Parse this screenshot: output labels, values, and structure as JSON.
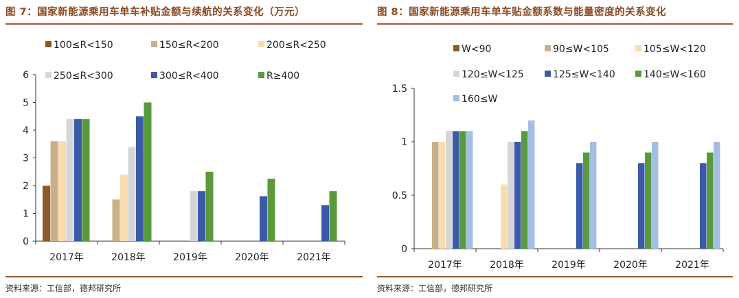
{
  "chart_data": [
    {
      "type": "bar",
      "title": "图 7：国家新能源乘用车单车补贴金额与续航的关系变化（万元）",
      "categories": [
        "2017年",
        "2018年",
        "2019年",
        "2020年",
        "2021年"
      ],
      "ylim": [
        0,
        6
      ],
      "yticks": [
        0,
        1,
        2,
        3,
        4,
        5,
        6
      ],
      "series": [
        {
          "name": "100≤R<150",
          "color": "#8b5a2b",
          "values": [
            2,
            null,
            null,
            null,
            null
          ]
        },
        {
          "name": "150≤R<200",
          "color": "#c8b08a",
          "values": [
            3.6,
            1.5,
            null,
            null,
            null
          ]
        },
        {
          "name": "200≤R<250",
          "color": "#fbdcae",
          "values": [
            3.6,
            2.4,
            null,
            null,
            null
          ]
        },
        {
          "name": "250≤R<300",
          "color": "#d6d6d6",
          "values": [
            4.4,
            3.4,
            1.8,
            null,
            null
          ]
        },
        {
          "name": "300≤R<400",
          "color": "#3b5ba9",
          "values": [
            4.4,
            4.5,
            1.8,
            1.62,
            1.3
          ]
        },
        {
          "name": "R≥400",
          "color": "#5a9a3e",
          "values": [
            4.4,
            5,
            2.5,
            2.25,
            1.8
          ]
        }
      ],
      "source": "资料来源：工信部，德邦研究所"
    },
    {
      "type": "bar",
      "title": "图 8：国家新能源乘用车单车贴金额系数与能量密度的关系变化",
      "categories": [
        "2017年",
        "2018年",
        "2019年",
        "2020年",
        "2021年"
      ],
      "ylim": [
        0,
        1.5
      ],
      "yticks": [
        0,
        0.5,
        1,
        1.5
      ],
      "series": [
        {
          "name": "W<90",
          "color": "#8b5a2b",
          "values": [
            null,
            null,
            null,
            null,
            null
          ]
        },
        {
          "name": "90≤W<105",
          "color": "#c8b08a",
          "values": [
            1,
            null,
            null,
            null,
            null
          ]
        },
        {
          "name": "105≤W<120",
          "color": "#fbdcae",
          "values": [
            1,
            0.6,
            null,
            null,
            null
          ]
        },
        {
          "name": "120≤W<125",
          "color": "#d6d6d6",
          "values": [
            1.1,
            1,
            null,
            null,
            null
          ]
        },
        {
          "name": "125≤W<140",
          "color": "#3b5ba9",
          "values": [
            1.1,
            1,
            0.8,
            0.8,
            0.8
          ]
        },
        {
          "name": "140≤W<160",
          "color": "#5a9a3e",
          "values": [
            1.1,
            1.1,
            0.9,
            0.9,
            0.9
          ]
        },
        {
          "name": "160≤W",
          "color": "#a4bfe3",
          "values": [
            1.1,
            1.2,
            1,
            1,
            1
          ]
        }
      ],
      "source": "资料来源：工信部，德邦研究所"
    }
  ]
}
